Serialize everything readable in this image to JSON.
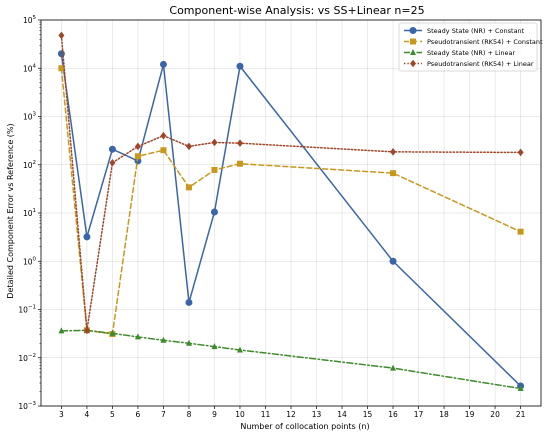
{
  "chart_data": {
    "type": "line",
    "title": "Component-wise Analysis: vs SS+Linear n=25",
    "xlabel": "Number of collocation points (n)",
    "ylabel": "Detailed Component Error vs Reference (%)",
    "xticks": [
      3,
      4,
      5,
      6,
      7,
      8,
      9,
      10,
      11,
      12,
      13,
      14,
      15,
      16,
      17,
      18,
      19,
      20,
      21
    ],
    "xlim": [
      2.2,
      21.8
    ],
    "ylim": [
      0.001,
      100000
    ],
    "yscale": "log",
    "yticks": [
      {
        "base": "10",
        "exp": "−3",
        "value": 0.001
      },
      {
        "base": "10",
        "exp": "−2",
        "value": 0.01
      },
      {
        "base": "10",
        "exp": "−1",
        "value": 0.1
      },
      {
        "base": "10",
        "exp": "0",
        "value": 1
      },
      {
        "base": "10",
        "exp": "1",
        "value": 10
      },
      {
        "base": "10",
        "exp": "2",
        "value": 100
      },
      {
        "base": "10",
        "exp": "3",
        "value": 1000
      },
      {
        "base": "10",
        "exp": "4",
        "value": 10000
      },
      {
        "base": "10",
        "exp": "5",
        "value": 100000
      }
    ],
    "grid": true,
    "legend_position": "top-right",
    "series": [
      {
        "name": "Steady State (NR) + Constant",
        "color": "#3a65a8",
        "marker": "circle",
        "linestyle": "solid",
        "x": [
          3,
          4,
          5,
          6,
          7,
          8,
          9,
          10,
          16,
          21
        ],
        "y": [
          20000,
          3.2,
          210,
          120,
          12000,
          0.14,
          10.5,
          11000,
          1.0,
          0.0026
        ]
      },
      {
        "name": "Pseudotransient (RK54) + Constant",
        "color": "#c8971e",
        "marker": "square",
        "linestyle": "dashed",
        "x": [
          3,
          4,
          5,
          6,
          7,
          8,
          9,
          10,
          16,
          21
        ],
        "y": [
          10000,
          0.037,
          0.031,
          150,
          200,
          34,
          78,
          105,
          67,
          4.1
        ]
      },
      {
        "name": "Steady State (NR) + Linear",
        "color": "#3c8b2b",
        "marker": "triangle",
        "linestyle": "dashdot",
        "x": [
          3,
          4,
          5,
          6,
          7,
          8,
          9,
          10,
          16,
          21
        ],
        "y": [
          0.036,
          0.037,
          0.032,
          0.027,
          0.023,
          0.02,
          0.017,
          0.0145,
          0.0061,
          0.0023
        ]
      },
      {
        "name": "Pseudotransient (RK54) + Linear",
        "color": "#a04628",
        "marker": "diamond",
        "linestyle": "dotted",
        "x": [
          3,
          4,
          5,
          6,
          7,
          8,
          9,
          10,
          16,
          21
        ],
        "y": [
          48000,
          0.037,
          110,
          240,
          400,
          240,
          290,
          280,
          185,
          180
        ]
      }
    ]
  }
}
